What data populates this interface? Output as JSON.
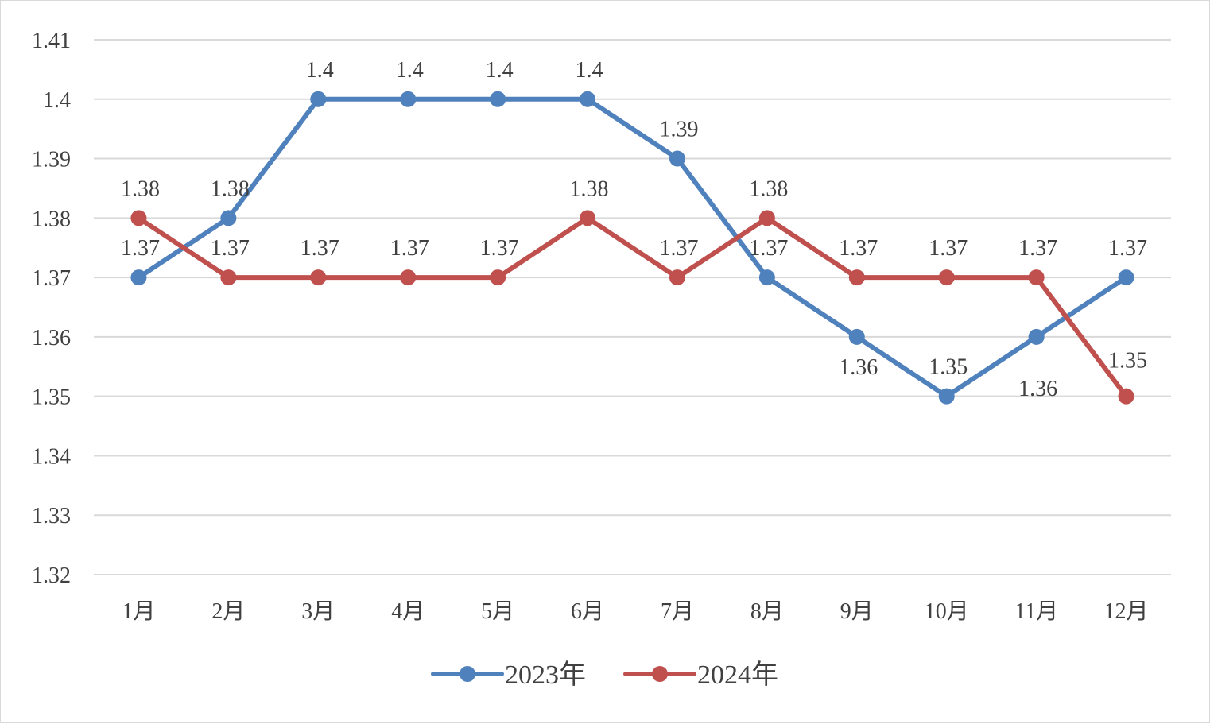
{
  "chart_data": {
    "type": "line",
    "categories": [
      "1月",
      "2月",
      "3月",
      "4月",
      "5月",
      "6月",
      "7月",
      "8月",
      "9月",
      "10月",
      "11月",
      "12月"
    ],
    "series": [
      {
        "name": "2023年",
        "color": "#4F81BD",
        "values": [
          1.37,
          1.38,
          1.4,
          1.4,
          1.4,
          1.4,
          1.39,
          1.37,
          1.36,
          1.35,
          1.36,
          1.37
        ],
        "labels": [
          "1.37",
          "1.38",
          "1.4",
          "1.4",
          "1.4",
          "1.4",
          "1.39",
          "1.37",
          "1.36",
          "1.35",
          "1.36",
          "1.37"
        ]
      },
      {
        "name": "2024年",
        "color": "#C0504D",
        "values": [
          1.38,
          1.37,
          1.37,
          1.37,
          1.37,
          1.38,
          1.37,
          1.38,
          1.37,
          1.37,
          1.37,
          1.35
        ],
        "labels": [
          "1.38",
          "1.37",
          "1.37",
          "1.37",
          "1.37",
          "1.38",
          "1.37",
          "1.38",
          "1.37",
          "1.37",
          "1.37",
          "1.35"
        ]
      }
    ],
    "y_ticks": [
      "1.32",
      "1.33",
      "1.34",
      "1.35",
      "1.36",
      "1.37",
      "1.38",
      "1.39",
      "1.4",
      "1.41"
    ],
    "ylim": [
      1.32,
      1.41
    ],
    "grid": true,
    "legend_position": "bottom",
    "title": "",
    "xlabel": "",
    "ylabel": ""
  }
}
